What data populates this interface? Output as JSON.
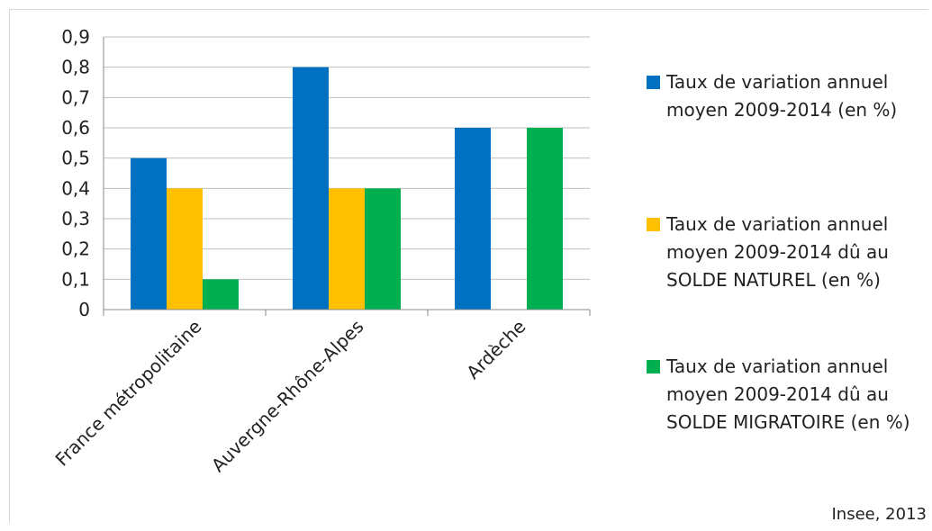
{
  "chart_data": {
    "type": "bar",
    "categories": [
      "France métropolitaine",
      "Auvergne-Rhône-Alpes",
      "Ardèche"
    ],
    "series": [
      {
        "name": "Taux de variation annuel moyen 2009-2014 (en %)",
        "color": "#0070c0",
        "values": [
          0.5,
          0.8,
          0.6
        ]
      },
      {
        "name": "Taux de variation annuel moyen 2009-2014 dû au SOLDE NATUREL (en %)",
        "color": "#ffc000",
        "values": [
          0.4,
          0.4,
          0
        ]
      },
      {
        "name": "Taux de variation annuel moyen 2009-2014 dû au SOLDE MIGRATOIRE  (en %)",
        "color": "#00b050",
        "values": [
          0.1,
          0.4,
          0.6
        ]
      }
    ],
    "ylim": [
      0,
      0.9
    ],
    "yticks": [
      "0",
      "0,1",
      "0,2",
      "0,3",
      "0,4",
      "0,5",
      "0,6",
      "0,7",
      "0,8",
      "0,9"
    ],
    "grid": true,
    "legend_position": "right",
    "source": "Insee, 2013"
  }
}
